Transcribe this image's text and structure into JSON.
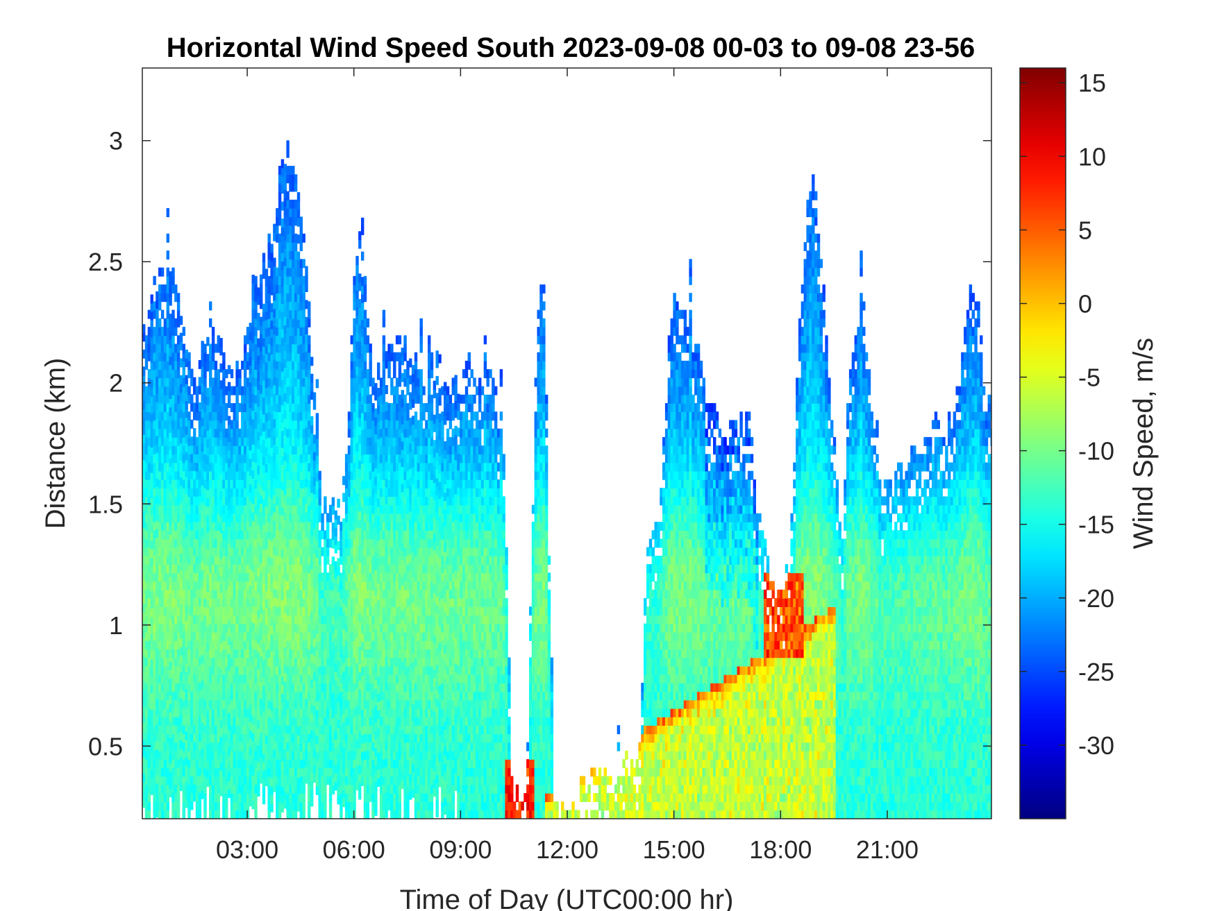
{
  "chart_data": {
    "type": "heatmap",
    "title": "Horizontal Wind Speed South 2023-09-08 00-03 to 09-08 23-56",
    "xlabel": "Time of Day (UTC00:00 hr)",
    "ylabel": "Distance (km)",
    "colorbar_label": "Wind Speed, m/s",
    "colormap": "jet",
    "grid": false,
    "xlim_hours": [
      0.05,
      23.93
    ],
    "ylim_km": [
      0.2,
      3.3
    ],
    "clim": [
      -35,
      16
    ],
    "x_ticks": [
      {
        "value": 3,
        "label": "03:00"
      },
      {
        "value": 6,
        "label": "06:00"
      },
      {
        "value": 9,
        "label": "09:00"
      },
      {
        "value": 12,
        "label": "12:00"
      },
      {
        "value": 15,
        "label": "15:00"
      },
      {
        "value": 18,
        "label": "18:00"
      },
      {
        "value": 21,
        "label": "21:00"
      }
    ],
    "y_ticks": [
      {
        "value": 0.5,
        "label": "0.5"
      },
      {
        "value": 1,
        "label": "1"
      },
      {
        "value": 1.5,
        "label": "1.5"
      },
      {
        "value": 2,
        "label": "2"
      },
      {
        "value": 2.5,
        "label": "2.5"
      },
      {
        "value": 3,
        "label": "3"
      }
    ],
    "colorbar_ticks": [
      {
        "value": 15,
        "label": "15"
      },
      {
        "value": 10,
        "label": "10"
      },
      {
        "value": 5,
        "label": "5"
      },
      {
        "value": 0,
        "label": "0"
      },
      {
        "value": -5,
        "label": "-5"
      },
      {
        "value": -10,
        "label": "-10"
      },
      {
        "value": -15,
        "label": "-15"
      },
      {
        "value": -20,
        "label": "-20"
      },
      {
        "value": -25,
        "label": "-25"
      },
      {
        "value": -30,
        "label": "-30"
      }
    ],
    "data_top_profile": {
      "hours": [
        0.05,
        0.3,
        0.5,
        1.0,
        1.5,
        1.8,
        2.0,
        2.3,
        2.6,
        2.8,
        3.1,
        3.4,
        3.7,
        4.0,
        4.3,
        4.6,
        4.9,
        5.05,
        5.3,
        5.6,
        5.8,
        6.0,
        6.2,
        6.4,
        6.6,
        6.8,
        7.2,
        7.6,
        8.0,
        8.4,
        8.7,
        9.0,
        9.3,
        9.6,
        9.9,
        10.2,
        10.4,
        10.6,
        10.8,
        11.1,
        11.3,
        11.6,
        11.9,
        12.2,
        12.5,
        13.0,
        13.5,
        14.0,
        14.2,
        14.6,
        14.9,
        15.1,
        15.3,
        15.6,
        15.9,
        16.2,
        16.5,
        16.8,
        17.1,
        17.3,
        17.6,
        17.9,
        18.2,
        18.5,
        18.7,
        18.9,
        19.1,
        19.4,
        19.7,
        19.9,
        20.1,
        20.3,
        20.6,
        20.8,
        21.0,
        21.3,
        21.6,
        21.9,
        22.3,
        22.6,
        22.8,
        23.1,
        23.3,
        23.5,
        23.7,
        23.93
      ],
      "top_km": [
        2.15,
        2.35,
        2.45,
        2.4,
        2.0,
        2.15,
        2.25,
        2.1,
        2.0,
        2.1,
        2.35,
        2.45,
        2.6,
        2.95,
        2.9,
        2.6,
        1.8,
        1.5,
        1.5,
        1.45,
        1.8,
        2.55,
        2.65,
        2.1,
        2.0,
        2.15,
        2.2,
        2.1,
        2.05,
        2.05,
        1.95,
        2.0,
        2.05,
        2.0,
        2.05,
        1.65,
        0.35,
        0.25,
        0.25,
        2.2,
        2.45,
        0.22,
        0.22,
        0.3,
        0.35,
        0.35,
        0.4,
        0.45,
        1.3,
        1.5,
        2.35,
        2.35,
        2.3,
        2.15,
        1.95,
        1.85,
        1.75,
        1.9,
        1.8,
        1.5,
        1.25,
        1.15,
        1.2,
        2.2,
        2.75,
        2.85,
        2.5,
        1.9,
        1.35,
        2.1,
        2.2,
        2.35,
        1.75,
        1.55,
        1.6,
        1.6,
        1.7,
        1.7,
        1.85,
        1.75,
        1.85,
        2.15,
        2.4,
        2.35,
        1.9,
        1.9
      ]
    }
  }
}
